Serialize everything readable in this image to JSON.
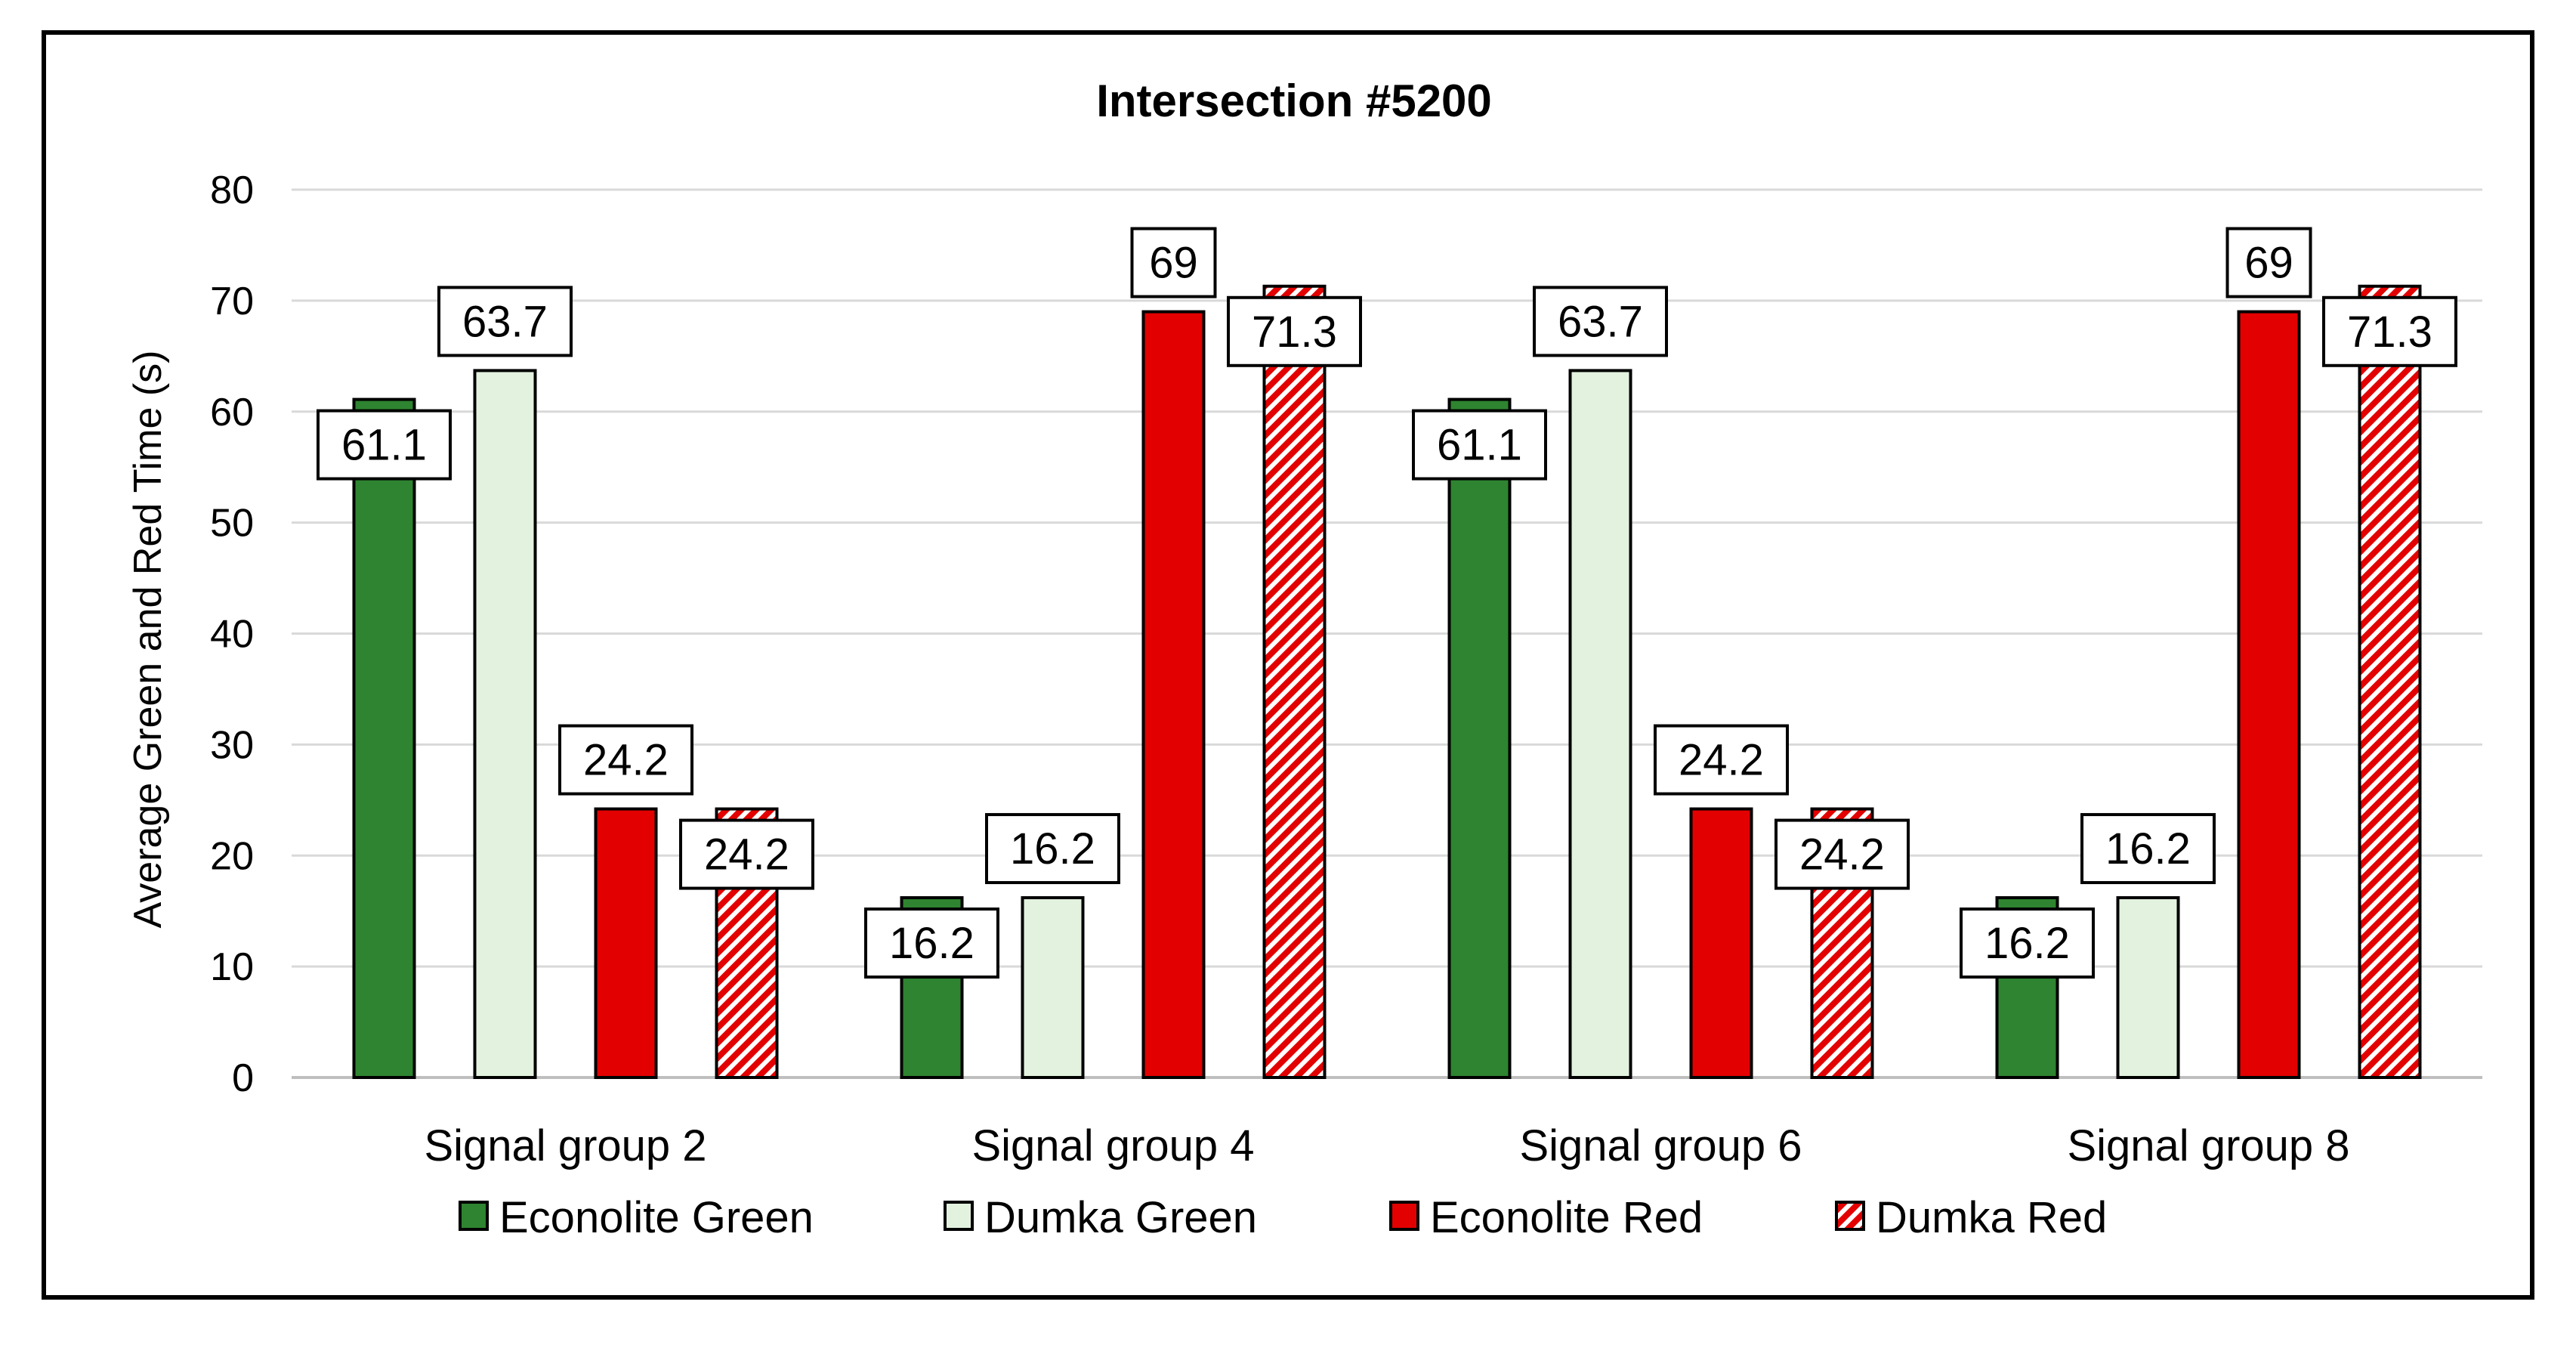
{
  "chart_data": {
    "type": "bar",
    "title": "Intersection #5200",
    "xlabel": "",
    "ylabel": "Average Green and Red Time (s)",
    "ylim": [
      0,
      80
    ],
    "yticks": [
      0,
      10,
      20,
      30,
      40,
      50,
      60,
      70,
      80
    ],
    "grid": true,
    "legend_position": "bottom",
    "categories": [
      "Signal group 2",
      "Signal group 4",
      "Signal group 6",
      "Signal group 8"
    ],
    "series": [
      {
        "name": "Econolite Green",
        "values": [
          61.1,
          16.2,
          61.1,
          16.2
        ],
        "labels": [
          "61.1",
          "16.2",
          "61.1",
          "16.2"
        ],
        "color": "#2e8430",
        "pattern": "solid"
      },
      {
        "name": "Dumka Green",
        "values": [
          63.7,
          16.2,
          63.7,
          16.2
        ],
        "labels": [
          "63.7",
          "16.2",
          "63.7",
          "16.2"
        ],
        "color": "#e2f2de",
        "pattern": "solid"
      },
      {
        "name": "Econolite Red",
        "values": [
          24.2,
          69,
          24.2,
          69
        ],
        "labels": [
          "24.2",
          "69",
          "24.2",
          "69"
        ],
        "color": "#e30000",
        "pattern": "solid"
      },
      {
        "name": "Dumka Red",
        "values": [
          24.2,
          71.3,
          24.2,
          71.3
        ],
        "labels": [
          "24.2",
          "71.3",
          "24.2",
          "71.3"
        ],
        "color": "#e30000",
        "pattern": "hatch"
      }
    ]
  }
}
